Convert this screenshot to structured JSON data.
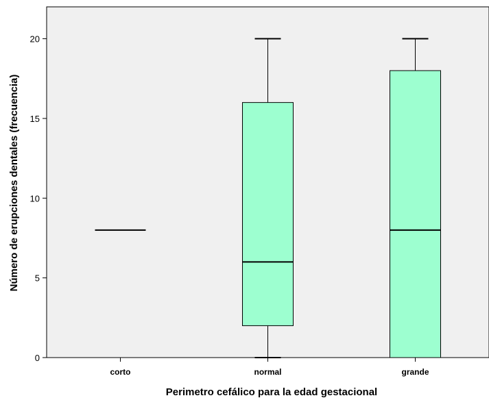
{
  "chart_data": {
    "type": "boxplot",
    "xlabel": "Perimetro cefálico para la edad gestacional",
    "ylabel": "Número de erupciones dentales (frecuencia)",
    "ylim": [
      0,
      22
    ],
    "yticks": [
      0,
      5,
      10,
      15,
      20
    ],
    "categories": [
      "corto",
      "normal",
      "grande"
    ],
    "boxes": [
      {
        "category": "corto",
        "min": 8,
        "q1": 8,
        "median": 8,
        "q3": 8,
        "max": 8
      },
      {
        "category": "normal",
        "min": 0,
        "q1": 2,
        "median": 6,
        "q3": 16,
        "max": 20
      },
      {
        "category": "grande",
        "min": 0,
        "q1": 0,
        "median": 8,
        "q3": 18,
        "max": 20
      }
    ],
    "colors": {
      "box_fill": "#9dffd0",
      "plot_background": "#f0f0f0",
      "line": "#000000"
    },
    "grid": false
  }
}
